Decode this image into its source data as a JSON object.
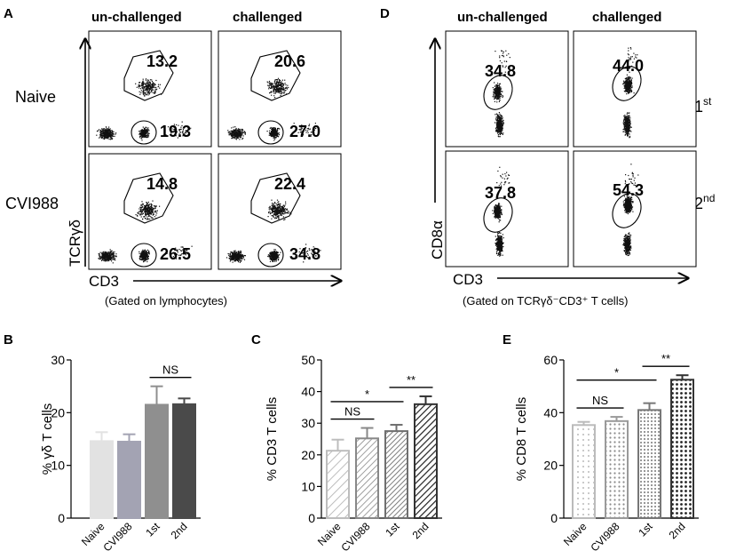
{
  "flow_A": {
    "letter": "A",
    "col_headers": [
      "un-challenged",
      "challenged"
    ],
    "row_labels": [
      "Naive",
      "CVI988"
    ],
    "y_axis": "TCRγδ",
    "x_axis": "CD3",
    "gating_note": "(Gated on lymphocytes)",
    "plots": [
      {
        "top": "13.2",
        "bottom": "19.3"
      },
      {
        "top": "20.6",
        "bottom": "27.0"
      },
      {
        "top": "14.8",
        "bottom": "26.5"
      },
      {
        "top": "22.4",
        "bottom": "34.8"
      }
    ]
  },
  "flow_D": {
    "letter": "D",
    "col_headers": [
      "un-challenged",
      "challenged"
    ],
    "row_labels": [
      "1",
      "2"
    ],
    "row_suffix": [
      "st",
      "nd"
    ],
    "y_axis": "CD8α",
    "x_axis": "CD3",
    "gating_note": "(Gated on TCRγδ⁻CD3⁺ T cells)",
    "plots": [
      {
        "value": "34.8"
      },
      {
        "value": "44.0"
      },
      {
        "value": "37.8"
      },
      {
        "value": "54.3"
      }
    ]
  },
  "chart_data": [
    {
      "letter": "B",
      "type": "bar",
      "ylabel": "% γδ T cells",
      "ylim": [
        0,
        30
      ],
      "yticks": [
        0,
        10,
        20,
        30
      ],
      "categories": [
        "Naive",
        "CVI988",
        "1st",
        "2nd"
      ],
      "values": [
        14.6,
        14.5,
        21.5,
        21.6
      ],
      "errors": [
        1.7,
        1.4,
        3.5,
        1.1
      ],
      "fill_colors": [
        "#e2e2e2",
        "#a3a3b3",
        "#8f8f8f",
        "#4a4a4a"
      ],
      "patterns": [
        "solid",
        "solid",
        "solid",
        "solid"
      ],
      "significance": [
        {
          "from": 2,
          "to": 3,
          "label": "NS"
        }
      ]
    },
    {
      "letter": "C",
      "type": "bar",
      "ylabel": "% CD3 T cells",
      "ylim": [
        0,
        50
      ],
      "yticks": [
        0,
        10,
        20,
        30,
        40,
        50
      ],
      "categories": [
        "Naive",
        "CVI988",
        "1st",
        "2nd"
      ],
      "values": [
        21.3,
        25.2,
        27.5,
        36.0
      ],
      "errors": [
        3.5,
        3.3,
        2.0,
        2.5
      ],
      "fill_colors": [
        "#bdbdbd",
        "#888888",
        "#6f6f6f",
        "#333333"
      ],
      "patterns": [
        "hatch-sparse",
        "hatch-medium",
        "hatch-dense",
        "hatch-bold"
      ],
      "significance": [
        {
          "from": 0,
          "to": 1,
          "label": "NS"
        },
        {
          "from": 0,
          "to": 2,
          "label": "*"
        },
        {
          "from": 2,
          "to": 3,
          "label": "**"
        }
      ]
    },
    {
      "letter": "E",
      "type": "bar",
      "ylabel": "% CD8 T cells",
      "ylim": [
        0,
        60
      ],
      "yticks": [
        0,
        20,
        40,
        60
      ],
      "categories": [
        "Naive",
        "CVI988",
        "1st",
        "2nd"
      ],
      "values": [
        35.3,
        36.8,
        41.0,
        52.5
      ],
      "errors": [
        1.2,
        1.6,
        2.6,
        1.7
      ],
      "fill_colors": [
        "#bbbbbb",
        "#9a9a9a",
        "#777777",
        "#333333"
      ],
      "patterns": [
        "dots-light",
        "dots-medium",
        "dots-dense",
        "dots-bold"
      ],
      "significance": [
        {
          "from": 0,
          "to": 1,
          "label": "NS"
        },
        {
          "from": 0,
          "to": 2,
          "label": "*"
        },
        {
          "from": 2,
          "to": 3,
          "label": "**"
        }
      ]
    }
  ]
}
